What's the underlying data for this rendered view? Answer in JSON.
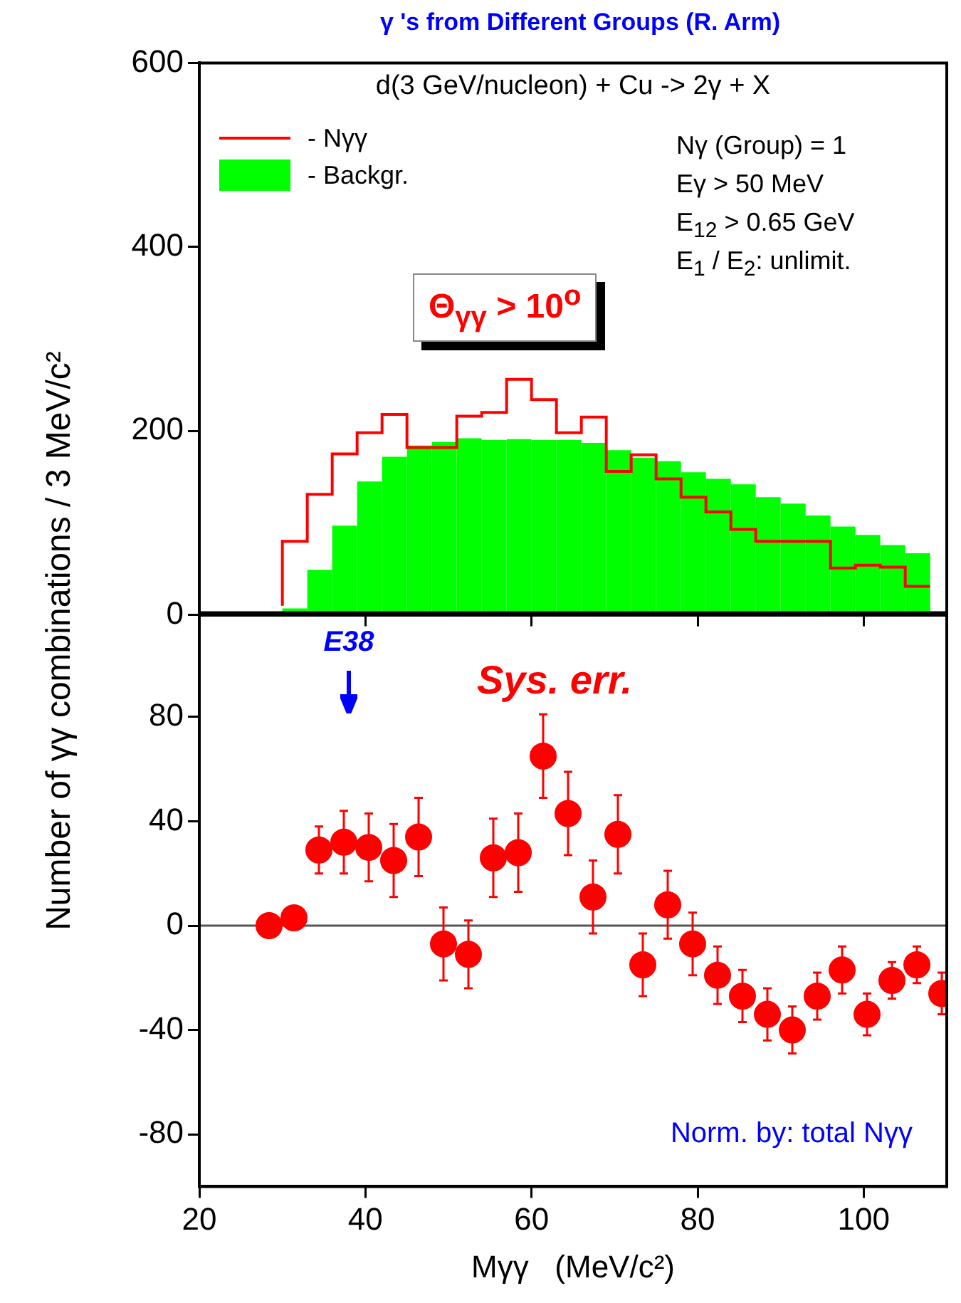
{
  "chart_data": [
    {
      "type": "histogram",
      "title": "γ 's from Different Groups (R. Arm)",
      "subtitle": "d(3 GeV/nucleon) + Cu -> 2γ + X",
      "ylabel": "Number of γγ combinations / 3 MeV/c²",
      "bins": [
        30,
        33,
        36,
        39,
        42,
        45,
        48,
        51,
        54,
        57,
        60,
        63,
        66,
        69,
        72,
        75,
        78,
        81,
        84,
        87,
        90,
        93,
        96,
        99,
        102,
        105,
        108
      ],
      "series": [
        {
          "name": "- Nγγ",
          "type": "step",
          "color": "#ff0000",
          "x": [
            30,
            33,
            36,
            39,
            42,
            45,
            48,
            51,
            54,
            57,
            60,
            63,
            66,
            69,
            72,
            75,
            78,
            81,
            84,
            87,
            90,
            93,
            96,
            99,
            102,
            105,
            108
          ],
          "values": [
            10,
            80,
            131,
            175,
            198,
            218,
            182,
            182,
            216,
            220,
            256,
            234,
            198,
            215,
            156,
            174,
            148,
            128,
            112,
            93,
            80,
            80,
            80,
            51,
            54,
            52,
            31
          ]
        },
        {
          "name": "- Backgr.",
          "color": "#00ff00",
          "values": [
            7,
            49,
            97,
            145,
            172,
            184,
            188,
            192,
            190,
            191,
            190,
            190,
            187,
            179,
            171,
            167,
            155,
            148,
            142,
            128,
            121,
            108,
            96,
            87,
            76,
            67
          ]
        }
      ],
      "xlim": [
        20,
        110
      ],
      "xticks": [
        20,
        40,
        60,
        80,
        100
      ],
      "ylim": [
        0,
        600
      ],
      "yticks": [
        0,
        200,
        400,
        600
      ],
      "tick_labels": "y",
      "grid": false,
      "legend": "top left",
      "annotations": [
        "Nγ (Group) = 1",
        "Eγ  > 50 MeV",
        "E$_{12}$ > 0.65 GeV",
        "E$_{1}$ / E$_{2}$:  unlimit.",
        "Θ$_{γγ}$  >  10$^{o}$"
      ]
    },
    {
      "type": "scatter",
      "xlabel": "Mγγ   (MeV/c²)",
      "color": "#ff0000",
      "marker": "circle",
      "x": [
        28.4,
        31.4,
        34.4,
        37.4,
        40.4,
        43.4,
        46.4,
        49.4,
        52.4,
        55.4,
        58.4,
        61.4,
        64.4,
        67.4,
        70.4,
        73.4,
        76.4,
        79.4,
        82.4,
        85.4,
        88.4,
        91.4,
        94.4,
        97.4,
        100.4,
        103.4,
        106.4,
        109.4
      ],
      "values": [
        0,
        3,
        29,
        32,
        30,
        25,
        34,
        -7,
        -11,
        26,
        28,
        65,
        43,
        11,
        35,
        -15,
        8,
        -7,
        -19,
        -27,
        -34,
        -40,
        -27,
        -17,
        -34,
        -21,
        -15,
        -26
      ],
      "errors": [
        null,
        null,
        9,
        12,
        13,
        14,
        15,
        14,
        13,
        15,
        15,
        16,
        16,
        14,
        15,
        12,
        13,
        12,
        11,
        10,
        10,
        9,
        9,
        9,
        8,
        7,
        7,
        8
      ],
      "xlim": [
        20,
        110
      ],
      "xticks": [
        20,
        40,
        60,
        80,
        100
      ],
      "ylim": [
        -100,
        120
      ],
      "yticks": [
        -80,
        -40,
        0,
        40,
        80
      ],
      "grid": false,
      "ref_lines": [
        {
          "axis": "y",
          "value": 0,
          "color": "#555555"
        }
      ],
      "annotations": [
        "E38",
        "Sys. err.",
        "Norm. by: total Nγγ"
      ]
    }
  ]
}
